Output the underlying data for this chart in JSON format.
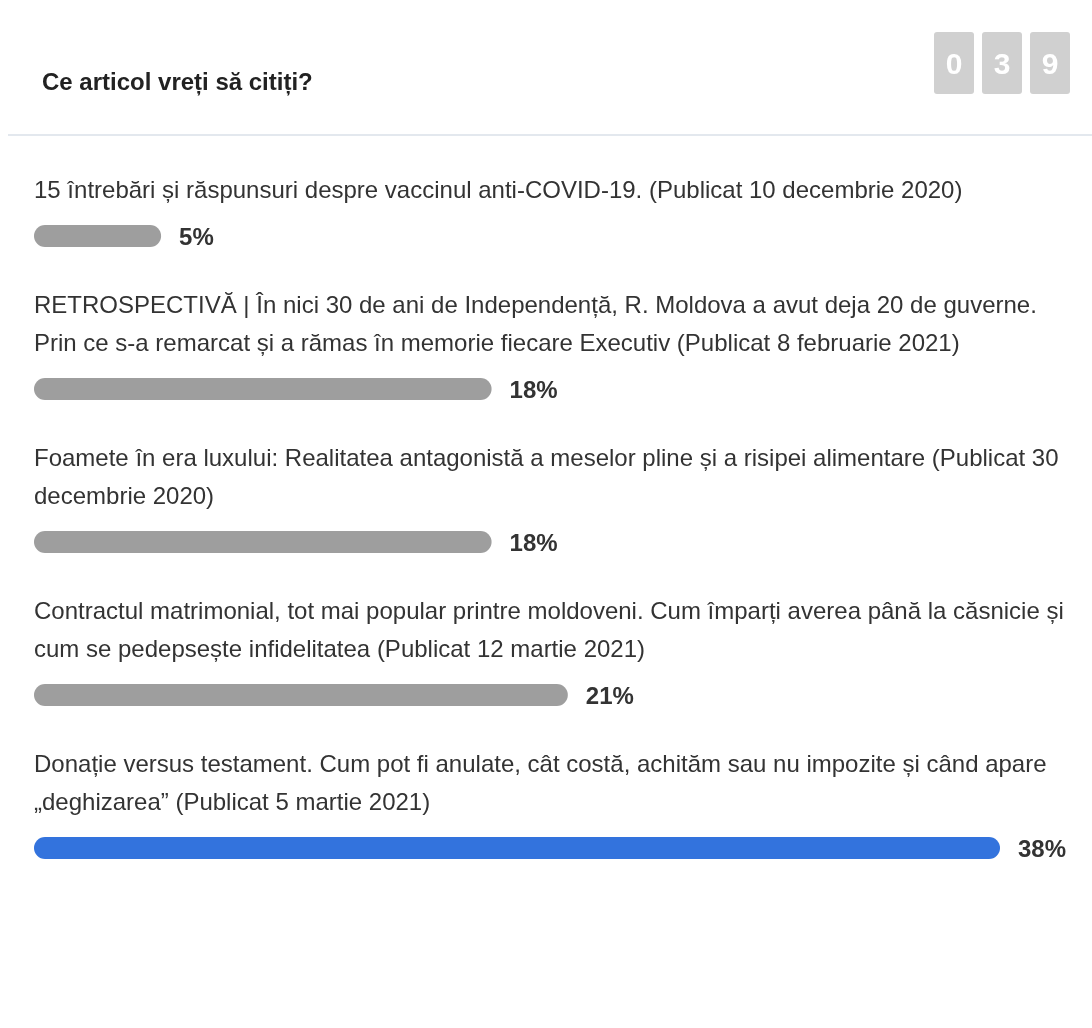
{
  "chart_data": {
    "type": "bar",
    "orientation": "horizontal",
    "title": "Ce articol vreți să citiți?",
    "annotations": [
      "0",
      "3",
      "9"
    ],
    "categories": [
      "15 întrebări și răspunsuri despre vaccinul anti-COVID-19. (Publicat 10 decembrie 2020)",
      "RETROSPECTIVĂ | În nici 30 de ani de Independență, R. Moldova a avut deja 20 de guverne. Prin ce s-a remarcat și a rămas în memorie fiecare Executiv (Publicat 8 februarie 2021)",
      "Foamete în era luxului: Realitatea antagonistă a meselor pline și a risipei alimentare (Publicat 30 decembrie 2020)",
      "Contractul matrimonial, tot mai popular printre moldoveni. Cum împarți averea până la căsnicie și cum se pedepsește infidelitatea (Publicat 12 martie 2021)",
      "Donație versus testament. Cum pot fi anulate, cât costă, achităm sau nu impozite și când apare „deghizarea” (Publicat 5 martie 2021)"
    ],
    "values": [
      5,
      18,
      18,
      21,
      38
    ],
    "value_labels": [
      "5%",
      "18%",
      "18%",
      "21%",
      "38%"
    ],
    "colors": [
      "#9e9e9e",
      "#9e9e9e",
      "#9e9e9e",
      "#9e9e9e",
      "#3373dd"
    ]
  }
}
